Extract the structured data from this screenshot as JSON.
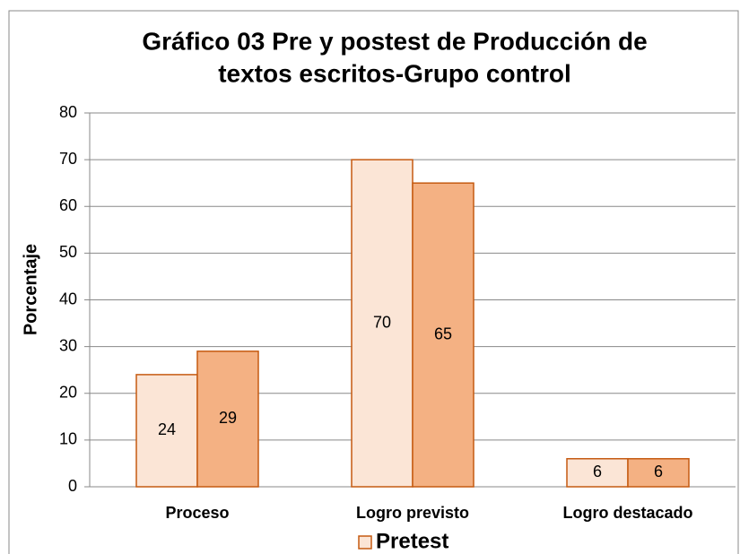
{
  "chart_data": {
    "type": "bar",
    "title": [
      "Gráfico 03 Pre y postest de Producción de",
      "textos escritos-Grupo control"
    ],
    "y_label": "Porcentaje",
    "categories": [
      "Proceso",
      "Logro previsto",
      "Logro destacado"
    ],
    "series": [
      {
        "name": "Pretest",
        "color": "#fbe5d6",
        "values": [
          24,
          70,
          6
        ]
      },
      {
        "color": "#f4b183",
        "values": [
          29,
          65,
          6
        ]
      }
    ],
    "ylim": [
      0,
      80
    ],
    "yticks": [
      0,
      10,
      20,
      30,
      40,
      50,
      60,
      70,
      80
    ],
    "grid": true,
    "legend": "bottom"
  }
}
